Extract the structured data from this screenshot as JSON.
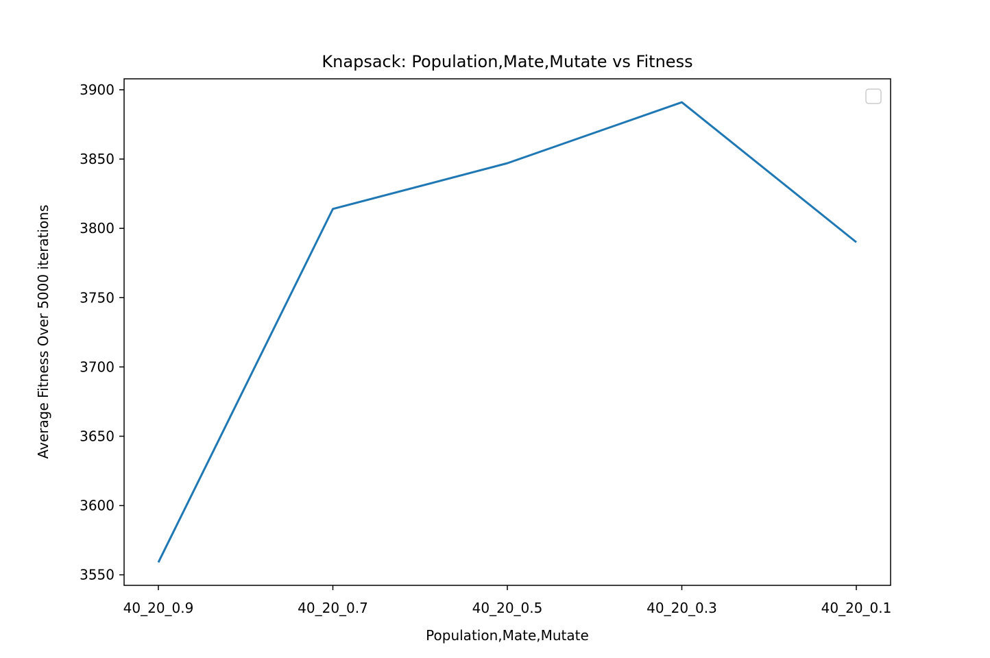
{
  "chart_data": {
    "type": "line",
    "title": "Knapsack: Population,Mate,Mutate vs Fitness",
    "xlabel": "Population,Mate,Mutate",
    "ylabel": "Average Fitness Over 5000 iterations",
    "categories": [
      "40_20_0.9",
      "40_20_0.7",
      "40_20_0.5",
      "40_20_0.3",
      "40_20_0.1"
    ],
    "series": [
      {
        "values": [
          3559,
          3814,
          3847,
          3891,
          3790
        ],
        "color": "#1f77b4"
      }
    ],
    "yticks": [
      3550,
      3600,
      3650,
      3700,
      3750,
      3800,
      3850,
      3900
    ],
    "ylim": [
      3542.4,
      3907.9
    ],
    "grid": false,
    "legend": {
      "placement": "top-right",
      "entries": []
    }
  }
}
